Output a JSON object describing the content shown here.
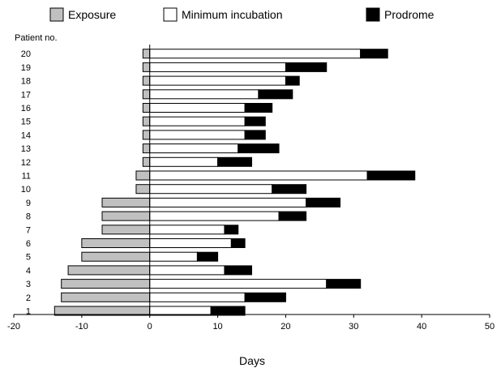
{
  "chart_data": {
    "type": "bar",
    "orientation": "horizontal",
    "stacked": true,
    "xlabel": "Days",
    "ylabel": "Patient no.",
    "xlim": [
      -20,
      50
    ],
    "xticks": [
      "-20",
      "-10",
      "0",
      "10",
      "20",
      "30",
      "40",
      "50"
    ],
    "legend_position": "top",
    "categories": [
      "1",
      "2",
      "3",
      "4",
      "5",
      "6",
      "7",
      "8",
      "9",
      "10",
      "11",
      "12",
      "13",
      "14",
      "15",
      "16",
      "17",
      "18",
      "19",
      "20"
    ],
    "series": [
      {
        "name": "Exposure",
        "color": "#c0c0c0",
        "values": [
          -14,
          -13,
          -13,
          -12,
          -10,
          -10,
          -7,
          -7,
          -7,
          -2,
          -2,
          -1,
          -1,
          -1,
          -1,
          -1,
          -1,
          -1,
          -1,
          -1
        ]
      },
      {
        "name": "Minimum incubation",
        "color": "#ffffff",
        "values": [
          9,
          14,
          26,
          11,
          7,
          12,
          11,
          19,
          23,
          18,
          32,
          10,
          13,
          14,
          14,
          14,
          16,
          20,
          20,
          31
        ]
      },
      {
        "name": "Prodrome",
        "color": "#000000",
        "values": [
          5,
          6,
          5,
          4,
          3,
          2,
          2,
          4,
          5,
          5,
          7,
          5,
          6,
          3,
          3,
          4,
          5,
          2,
          6,
          4
        ]
      }
    ]
  }
}
